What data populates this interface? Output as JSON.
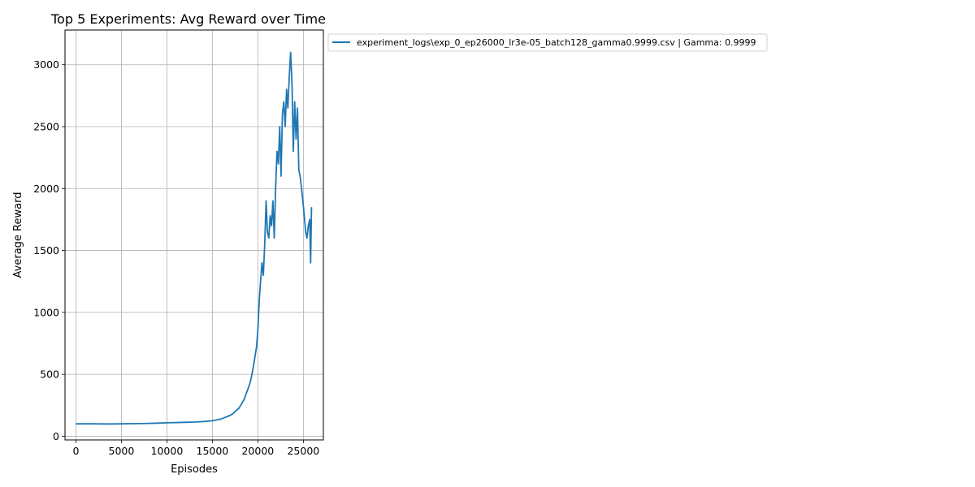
{
  "chart_data": {
    "type": "line",
    "title": "Top 5 Experiments: Avg Reward over Time",
    "xlabel": "Episodes",
    "ylabel": "Average Reward",
    "xlim": [
      -1200,
      27200
    ],
    "ylim": [
      -30,
      3280
    ],
    "x_ticks": [
      0,
      5000,
      10000,
      15000,
      20000,
      25000
    ],
    "x_tick_labels": [
      "0",
      "5000",
      "10000",
      "15000",
      "20000",
      "25000"
    ],
    "y_ticks": [
      0,
      500,
      1000,
      1500,
      2000,
      2500,
      3000
    ],
    "y_tick_labels": [
      "0",
      "500",
      "1000",
      "1500",
      "2000",
      "2500",
      "3000"
    ],
    "grid": true,
    "legend_position": "outside-upper-right",
    "series": [
      {
        "name": "experiment_logs\\exp_0_ep26000_lr3e-05_batch128_gamma0.9999.csv | Gamma: 0.9999",
        "color": "#1f77b4",
        "x": [
          0,
          1000,
          2000,
          3000,
          4000,
          5000,
          6000,
          7000,
          8000,
          9000,
          10000,
          11000,
          12000,
          13000,
          14000,
          15000,
          15500,
          16000,
          16500,
          17000,
          17300,
          17600,
          17900,
          18200,
          18500,
          18700,
          18900,
          19100,
          19300,
          19500,
          19700,
          19850,
          20000,
          20150,
          20300,
          20450,
          20600,
          20750,
          20900,
          21050,
          21200,
          21350,
          21500,
          21650,
          21800,
          21950,
          22100,
          22250,
          22400,
          22550,
          22700,
          22850,
          23000,
          23150,
          23300,
          23450,
          23600,
          23750,
          23900,
          24050,
          24200,
          24350,
          24500,
          24650,
          24800,
          24950,
          25100,
          25250,
          25400,
          25550,
          25700,
          25800,
          25900
        ],
        "y": [
          100,
          100,
          100,
          99,
          99,
          100,
          101,
          102,
          104,
          106,
          108,
          110,
          112,
          114,
          118,
          125,
          132,
          140,
          155,
          170,
          185,
          205,
          225,
          260,
          300,
          340,
          380,
          420,
          480,
          560,
          650,
          720,
          860,
          1100,
          1250,
          1400,
          1300,
          1550,
          1900,
          1650,
          1600,
          1780,
          1700,
          1900,
          1600,
          2000,
          2300,
          2200,
          2500,
          2100,
          2600,
          2700,
          2500,
          2800,
          2650,
          2900,
          3100,
          2850,
          2300,
          2700,
          2400,
          2650,
          2150,
          2100,
          2000,
          1900,
          1780,
          1650,
          1600,
          1700,
          1750,
          1400,
          1850
        ]
      }
    ]
  }
}
